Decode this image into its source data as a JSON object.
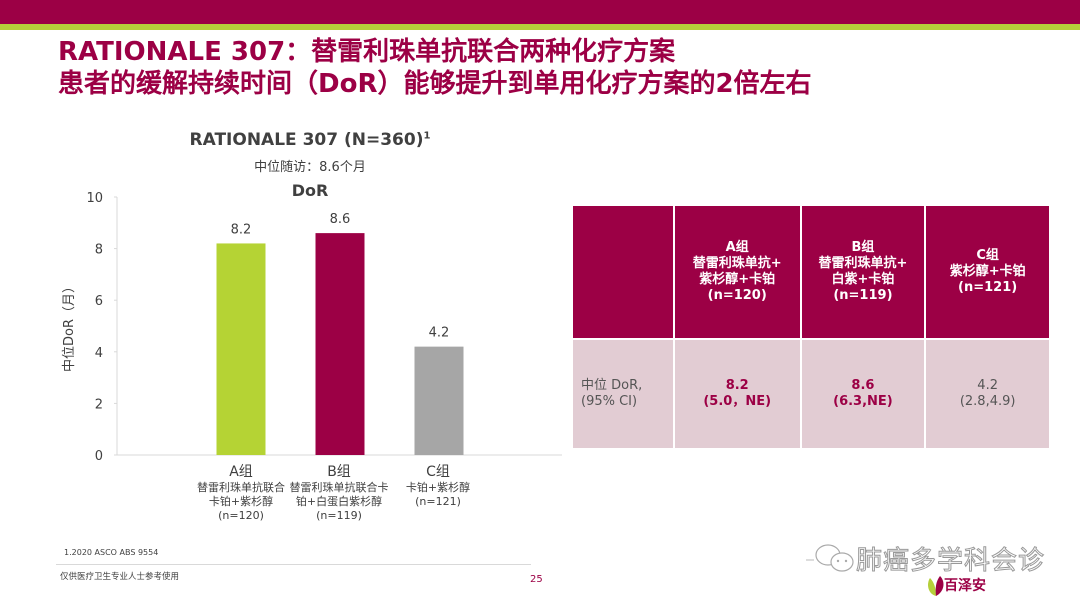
{
  "header": {
    "title_line1": "RATIONALE 307：替雷利珠单抗联合两种化疗方案",
    "title_line2": "患者的缓解持续时间（DoR）能够提升到单用化疗方案的2倍左右",
    "colors": {
      "brand": "#9c0045",
      "accent": "#b5cf3a"
    }
  },
  "chart_header": {
    "title": "RATIONALE 307 (N=360)",
    "title_sup": "1",
    "subtitle": "中位随访：8.6个月",
    "metric": "DoR"
  },
  "chart_data": {
    "type": "bar",
    "title": "DoR",
    "xlabel": "",
    "ylabel": "中位DoR（月）",
    "ylim": [
      0,
      10
    ],
    "yticks": [
      0,
      2,
      4,
      6,
      8,
      10
    ],
    "grid": false,
    "categories": [
      "A组",
      "B组",
      "C组"
    ],
    "category_desc": [
      "替雷利珠单抗联合卡铂+紫杉醇",
      "替雷利珠单抗联合卡铂+白蛋白紫杉醇",
      "卡铂+紫杉醇"
    ],
    "category_n": [
      "(n=120)",
      "(n=119)",
      "(n=121)"
    ],
    "values": [
      8.2,
      8.6,
      4.2
    ],
    "value_labels": [
      "8.2",
      "8.6",
      "4.2"
    ],
    "colors": [
      "#b5d334",
      "#9c0045",
      "#a6a6a6"
    ]
  },
  "cat_lines": [
    {
      "group": "A组",
      "line1": "替雷利珠单抗联合",
      "line2": "卡铂+紫杉醇",
      "n": "(n=120)"
    },
    {
      "group": "B组",
      "line1": "替雷利珠单抗联合卡",
      "line2": "铂+白蛋白紫杉醇",
      "n": "(n=119)"
    },
    {
      "group": "C组",
      "line1": "卡铂+紫杉醇",
      "line2": "(n=121)",
      "n": ""
    }
  ],
  "table": {
    "columns": [
      {
        "group": "A组",
        "line1": "替雷利珠单抗+",
        "line2": "紫杉醇+卡铂",
        "n": "(n=120)"
      },
      {
        "group": "B组",
        "line1": "替雷利珠单抗+",
        "line2": "白紫+卡铂",
        "n": "(n=119)"
      },
      {
        "group": "C组",
        "line1": "紫杉醇+卡铂",
        "line2": "(n=121)",
        "n": ""
      }
    ],
    "row": {
      "label_line1": "中位 DoR,",
      "label_line2": "(95% CI)",
      "cells": [
        {
          "value": "8.2",
          "ci": "(5.0，NE)"
        },
        {
          "value": "8.6",
          "ci": "(6.3,NE)"
        },
        {
          "value": "4.2",
          "ci": "(2.8,4.9)"
        }
      ]
    }
  },
  "footer": {
    "reference": "1.2020 ASCO ABS 9554",
    "disclaimer": "仅供医疗卫生专业人士参考使用",
    "page": "25",
    "watermark": "肺癌多学科会诊",
    "logo_text": "百泽安"
  }
}
